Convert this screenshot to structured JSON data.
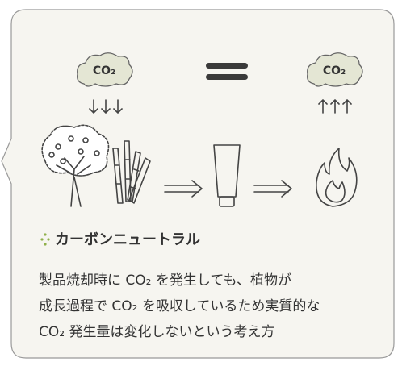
{
  "illustration": {
    "cloud_left": "CO₂",
    "cloud_right": "CO₂"
  },
  "heading": "カーボンニュートラル",
  "body": [
    "製品焼却時に CO₂ を発生しても、植物が",
    "成長過程で CO₂ を吸収しているため実質的な",
    "CO₂ 発生量は変化しないという考え方"
  ]
}
